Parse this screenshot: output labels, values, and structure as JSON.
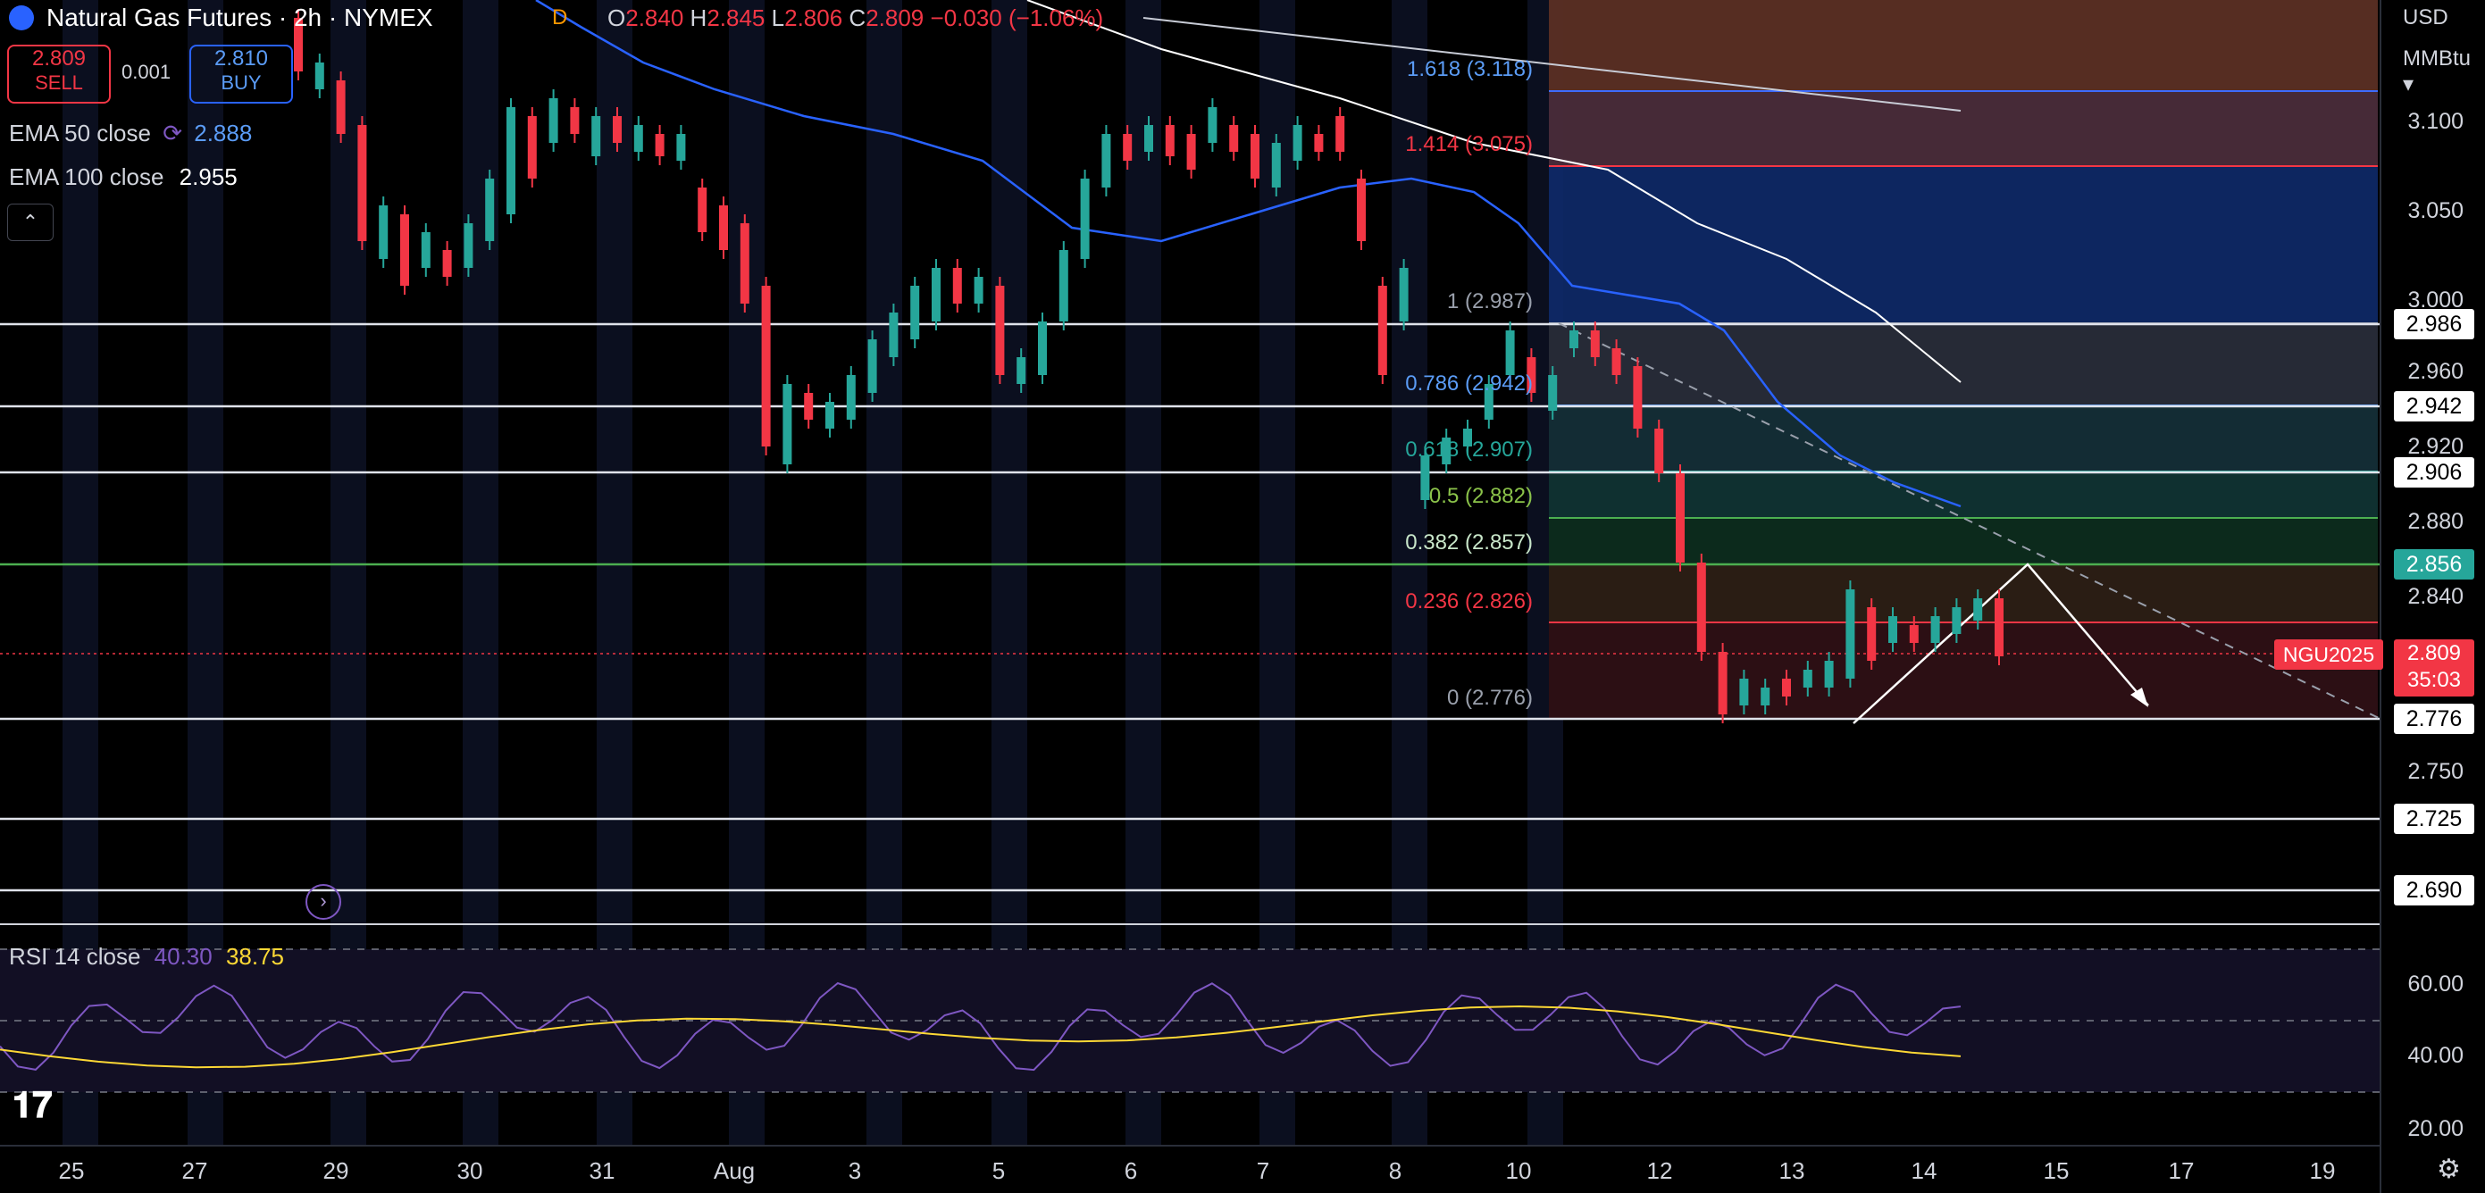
{
  "header": {
    "title": "Natural Gas Futures · 2h · NYMEX",
    "interval_badge": "D",
    "ohlc": {
      "o_key": "O",
      "o": "2.840",
      "h_key": "H",
      "h": "2.845",
      "l_key": "L",
      "l": "2.806",
      "c_key": "C",
      "c": "2.809",
      "change": "−0.030 (−1.06%)"
    }
  },
  "trade": {
    "sell_price": "2.809",
    "sell_label": "SELL",
    "spread": "0.001",
    "buy_price": "2.810",
    "buy_label": "BUY"
  },
  "indicators": {
    "ema50_label": "EMA 50 close",
    "ema50_value": "2.888",
    "ema100_label": "EMA 100 close",
    "ema100_value": "2.955",
    "collapse_icon": "chevron-up-icon"
  },
  "currency": "USD",
  "unit": "MMBtu",
  "price_axis": {
    "ticks": [
      "3.100",
      "3.050",
      "3.000",
      "2.960",
      "2.920",
      "2.880",
      "2.840",
      "2.750"
    ],
    "horizontal_levels": [
      "2.986",
      "2.942",
      "2.906",
      "2.856",
      "2.776",
      "2.725",
      "2.690"
    ],
    "symbol_tag": "NGU2025",
    "last_price": "2.809",
    "countdown": "35:03"
  },
  "fib": {
    "l1618": "1.618 (3.118)",
    "l1414": "1.414 (3.075)",
    "l1": "1 (2.987)",
    "l0786": "0.786 (2.942)",
    "l0618": "0.618 (2.907)",
    "l05": "0.5 (2.882)",
    "l0382": "0.382 (2.857)",
    "l0236": "0.236 (2.826)",
    "l0": "0 (2.776)"
  },
  "rsi": {
    "label": "RSI 14 close",
    "value": "40.30",
    "ma_value": "38.75",
    "ticks": [
      "60.00",
      "40.00",
      "20.00"
    ]
  },
  "time_axis": [
    "25",
    "27",
    "29",
    "30",
    "31",
    "Aug",
    "3",
    "5",
    "6",
    "7",
    "8",
    "10",
    "12",
    "13",
    "14",
    "15",
    "17",
    "19"
  ],
  "colors": {
    "up": "#26a69a",
    "down": "#f23645",
    "ema50": "#2962ff",
    "ema100": "#ffffff",
    "rsi": "#7e57c2",
    "rsi_ma": "#fdd835"
  },
  "icons": {
    "logo": "tradingview-logo",
    "settings": "gear-icon",
    "goto_realtime": "jump-to-realtime-icon"
  }
}
